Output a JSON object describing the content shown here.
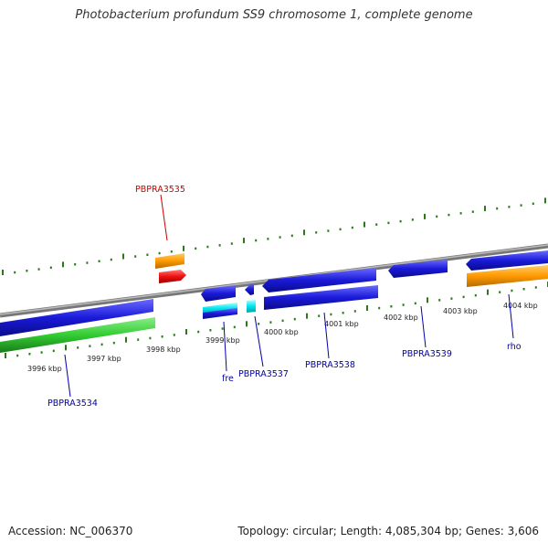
{
  "title": "Photobacterium profundum SS9 chromosome 1, complete genome",
  "footer": {
    "accession": "Accession: NC_006370",
    "summary": "Topology: circular; Length: 4,085,304 bp; Genes: 3,606"
  },
  "colors": {
    "backbone": "#888888",
    "tick": "#2a7a1a",
    "blue_gene": "#1a1ad9",
    "green_gene": "#33cc33",
    "orange_gene": "#ff9900",
    "red_gene": "#ee1111",
    "cyan_gene": "#00e5ee",
    "label_blue": "#0000aa",
    "label_red": "#cc0000"
  },
  "scale_labels": [
    "3996 kbp",
    "3997 kbp",
    "3998 kbp",
    "3999 kbp",
    "4000 kbp",
    "4001 kbp",
    "4002 kbp",
    "4003 kbp",
    "4004 kbp"
  ],
  "gene_labels": [
    {
      "text": "PBPRA3535",
      "color": "red"
    },
    {
      "text": "PBPRA3534",
      "color": "blue"
    },
    {
      "text": "fre",
      "color": "blue"
    },
    {
      "text": "PBPRA3537",
      "color": "blue"
    },
    {
      "text": "PBPRA3538",
      "color": "blue"
    },
    {
      "text": "PBPRA3539",
      "color": "blue"
    },
    {
      "text": "rho",
      "color": "blue"
    }
  ]
}
